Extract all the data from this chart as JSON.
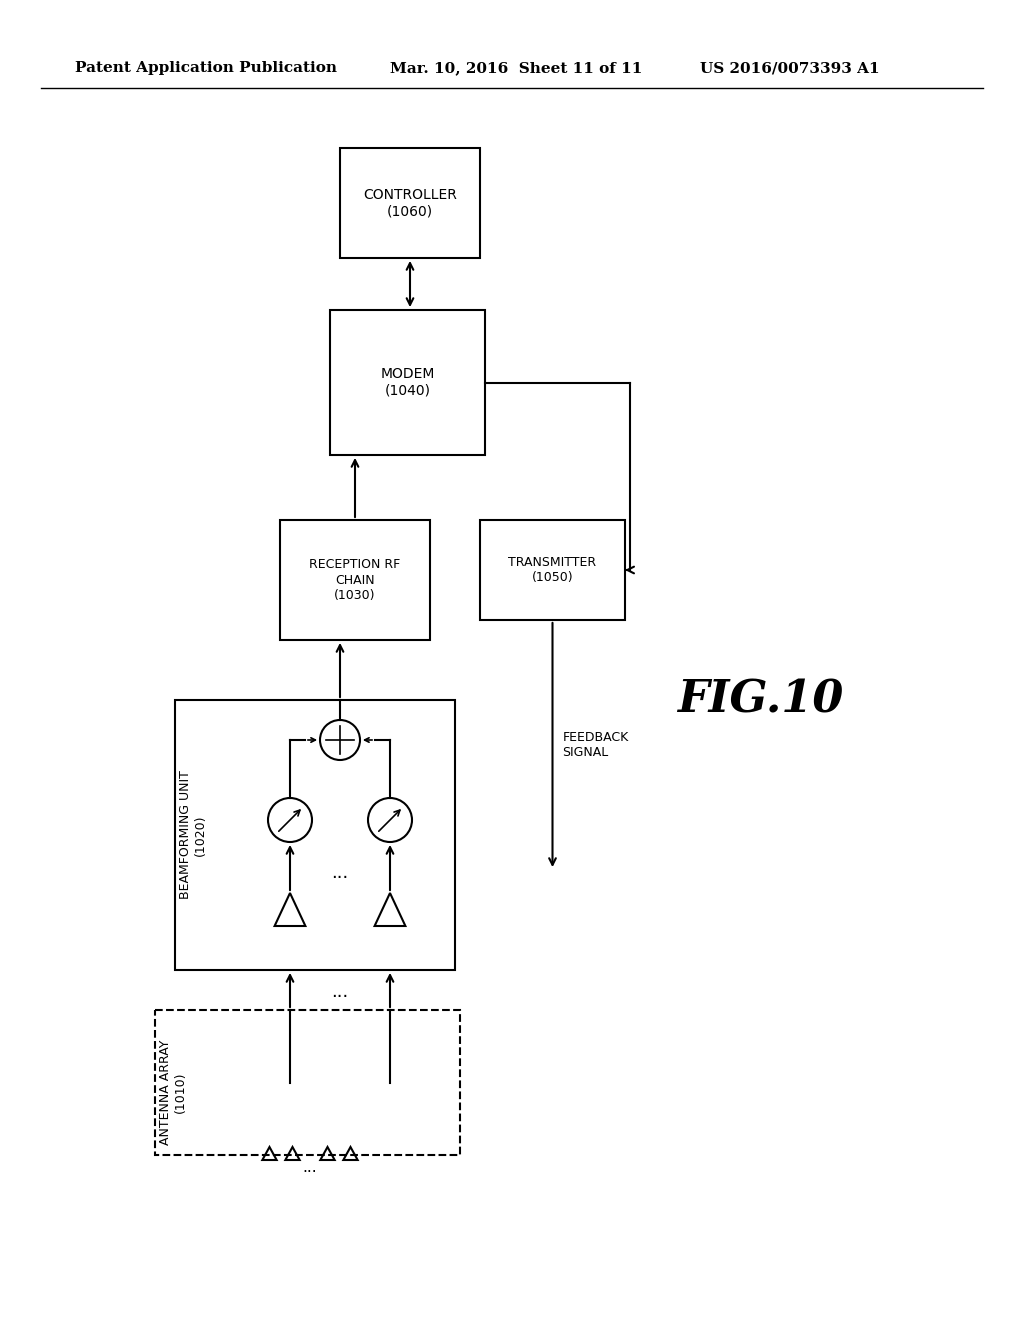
{
  "bg_color": "#ffffff",
  "header_left": "Patent Application Publication",
  "header_mid": "Mar. 10, 2016  Sheet 11 of 11",
  "header_right": "US 2016/0073393 A1",
  "fig_label": "FIG.10",
  "line_color": "#000000",
  "text_color": "#000000"
}
